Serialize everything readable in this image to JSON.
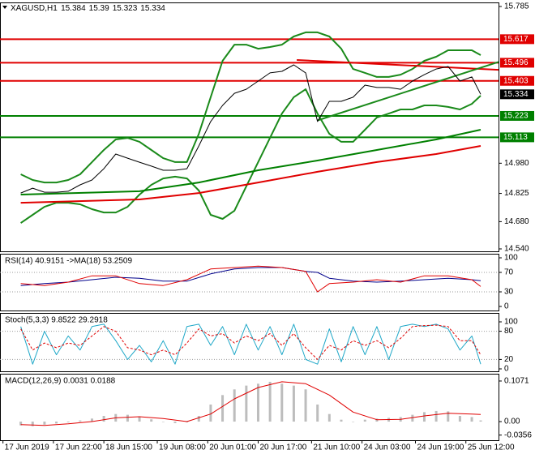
{
  "chart_data": [
    {
      "type": "line",
      "title": "XAGUSD,H1",
      "ohlc": [
        15.384,
        15.39,
        15.323,
        15.334
      ],
      "last_index": 3,
      "xlim": [
        -7,
        161
      ],
      "ylim": [
        14.54,
        15.785
      ],
      "yticks": [
        15.785,
        {
          "value": 14.98,
          "label": "14.980"
        },
        14.825,
        {
          "value": 14.68,
          "label": "14.680"
        },
        {
          "value": 14.54,
          "label": "14.540"
        }
      ],
      "grid": false,
      "x": [
        0,
        4,
        8,
        12,
        16,
        20,
        24,
        28,
        32,
        36,
        40,
        44,
        48,
        52,
        56,
        60,
        64,
        68,
        72,
        76,
        80,
        84,
        88,
        92,
        96,
        100,
        104,
        108,
        112,
        116,
        120,
        124,
        128,
        132,
        136,
        140,
        144,
        148,
        152,
        155
      ],
      "levels": [
        {
          "value": 15.617,
          "color": "#e00000"
        },
        {
          "value": 15.496,
          "color": "#e00000"
        },
        {
          "value": 15.403,
          "color": "#e00000"
        },
        {
          "value": 15.223,
          "color": "#008000"
        },
        {
          "value": 15.113,
          "color": "#008000"
        }
      ],
      "series": [
        {
          "color": "#1a8a1a",
          "width": 2,
          "values": [
            14.923,
            14.894,
            14.881,
            14.881,
            14.894,
            14.923,
            14.986,
            15.048,
            15.102,
            15.11,
            15.09,
            15.048,
            15.006,
            14.986,
            14.986,
            15.131,
            15.319,
            15.506,
            15.589,
            15.589,
            15.568,
            15.577,
            15.589,
            15.631,
            15.652,
            15.652,
            15.631,
            15.568,
            15.464,
            15.444,
            15.423,
            15.423,
            15.435,
            15.464,
            15.506,
            15.527,
            15.56,
            15.56,
            15.56,
            15.535
          ]
        },
        {
          "color": "#1a8a1a",
          "width": 2,
          "values": [
            14.673,
            14.715,
            14.756,
            14.777,
            14.777,
            14.769,
            14.744,
            14.727,
            14.727,
            14.756,
            14.819,
            14.869,
            14.902,
            14.911,
            14.902,
            14.84,
            14.715,
            14.694,
            14.736,
            14.861,
            14.986,
            15.11,
            15.235,
            15.319,
            15.36,
            15.235,
            15.131,
            15.09,
            15.09,
            15.152,
            15.215,
            15.235,
            15.256,
            15.256,
            15.277,
            15.277,
            15.269,
            15.256,
            15.285,
            15.327
          ]
        },
        {
          "color": "#008000",
          "width": 2,
          "x": [
            0,
            40,
            60,
            80,
            100,
            120,
            140,
            155
          ],
          "values": [
            14.819,
            14.836,
            14.881,
            14.944,
            14.994,
            15.048,
            15.102,
            15.152
          ]
        },
        {
          "color": "#e00000",
          "width": 2,
          "x": [
            0,
            40,
            60,
            80,
            100,
            120,
            140,
            155
          ],
          "values": [
            14.777,
            14.794,
            14.827,
            14.881,
            14.936,
            14.986,
            15.027,
            15.069
          ]
        },
        {
          "color": "#e00000",
          "width": 2,
          "x": [
            93,
            161
          ],
          "values": [
            15.51,
            15.46
          ]
        },
        {
          "color": "#1a8a1a",
          "width": 2,
          "x": [
            100,
            161
          ],
          "values": [
            15.2,
            15.5
          ]
        },
        {
          "color": "#000000",
          "width": 1,
          "values": [
            14.827,
            14.852,
            14.831,
            14.831,
            14.836,
            14.869,
            14.894,
            14.952,
            15.027,
            15.006,
            14.985,
            14.965,
            14.944,
            14.944,
            14.952,
            15.069,
            15.194,
            15.277,
            15.339,
            15.36,
            15.402,
            15.444,
            15.452,
            15.485,
            15.444,
            15.194,
            15.298,
            15.298,
            15.319,
            15.381,
            15.369,
            15.369,
            15.36,
            15.402,
            15.435,
            15.464,
            15.477,
            15.402,
            15.423,
            15.334
          ]
        }
      ]
    },
    {
      "type": "line",
      "label": "RSI(14) 40.9151 ->MA(18) 53.2509",
      "xlim": [
        -7,
        161
      ],
      "ylim": [
        0,
        100
      ],
      "yticks": [
        100,
        70,
        30,
        0
      ],
      "grid": true,
      "x": [
        0,
        8,
        16,
        24,
        32,
        40,
        48,
        56,
        64,
        72,
        80,
        88,
        96,
        100,
        104,
        112,
        120,
        128,
        136,
        144,
        152,
        155
      ],
      "series": [
        {
          "color": "#00008b",
          "width": 1,
          "values": [
            43,
            47,
            50,
            55,
            60,
            58,
            52,
            52,
            67,
            77,
            80,
            80,
            72,
            70,
            58,
            52,
            50,
            52,
            55,
            58,
            55,
            53
          ]
        },
        {
          "color": "#e00000",
          "width": 1,
          "values": [
            47,
            43,
            50,
            63,
            63,
            47,
            43,
            55,
            77,
            80,
            83,
            80,
            72,
            30,
            47,
            50,
            55,
            50,
            63,
            63,
            55,
            41
          ]
        }
      ]
    },
    {
      "type": "line",
      "label": "Stoch(5,3,3) 9.8522 29.2918",
      "xlim": [
        -7,
        161
      ],
      "ylim": [
        0,
        100
      ],
      "yticks": [
        100,
        80,
        20,
        0
      ],
      "grid": true,
      "x": [
        0,
        4,
        8,
        12,
        16,
        20,
        24,
        28,
        32,
        36,
        40,
        44,
        48,
        52,
        56,
        60,
        64,
        68,
        72,
        76,
        80,
        84,
        88,
        92,
        96,
        100,
        104,
        108,
        112,
        116,
        120,
        124,
        128,
        132,
        136,
        140,
        144,
        148,
        152,
        155
      ],
      "series": [
        {
          "color": "#20a8c8",
          "width": 1,
          "values": [
            90,
            10,
            80,
            30,
            70,
            40,
            90,
            95,
            60,
            20,
            50,
            15,
            60,
            10,
            90,
            95,
            50,
            90,
            30,
            95,
            40,
            90,
            30,
            95,
            20,
            10,
            85,
            15,
            90,
            30,
            90,
            20,
            90,
            95,
            90,
            95,
            85,
            40,
            70,
            10
          ]
        },
        {
          "color": "#e00000",
          "width": 1,
          "dash": true,
          "values": [
            85,
            40,
            55,
            45,
            55,
            50,
            70,
            90,
            80,
            45,
            40,
            30,
            40,
            30,
            55,
            85,
            70,
            75,
            55,
            70,
            60,
            75,
            50,
            75,
            45,
            20,
            50,
            40,
            60,
            50,
            60,
            45,
            65,
            90,
            92,
            93,
            90,
            60,
            60,
            30
          ]
        }
      ]
    },
    {
      "type": "histogram",
      "label": "MACD(12,26,9) 0.0031 0.0188",
      "xlim": [
        -7,
        161
      ],
      "ylim": [
        -0.047,
        0.122
      ],
      "yticks": [
        0.1071,
        {
          "value": 0,
          "label": "0.00"
        },
        -0.0356
      ],
      "grid": false,
      "xticks": [
        {
          "value": -6,
          "label": "17 Jun 2019"
        },
        {
          "value": 11,
          "label": "17 Jun 22:00"
        },
        {
          "value": 28,
          "label": "18 Jun 15:00"
        },
        {
          "value": 46,
          "label": "19 Jun 08:00"
        },
        {
          "value": 63,
          "label": "20 Jun 01:00"
        },
        {
          "value": 80,
          "label": "20 Jun 17:00"
        },
        {
          "value": 98,
          "label": "21 Jun 10:00"
        },
        {
          "value": 115,
          "label": "24 Jun 03:00"
        },
        {
          "value": 133,
          "label": "24 Jun 19:00"
        },
        {
          "value": 150,
          "label": "25 Jun 12:00"
        }
      ],
      "x": [
        0,
        4,
        8,
        12,
        16,
        20,
        24,
        28,
        32,
        36,
        40,
        44,
        48,
        52,
        56,
        60,
        64,
        68,
        72,
        76,
        80,
        84,
        88,
        92,
        96,
        100,
        104,
        108,
        112,
        116,
        120,
        124,
        128,
        132,
        136,
        140,
        144,
        148,
        152,
        155
      ],
      "bar_color": "#bdbdbd",
      "values": [
        -0.01,
        -0.012,
        -0.008,
        -0.005,
        -0.002,
        0.003,
        0.008,
        0.015,
        0.02,
        0.018,
        0.012,
        0.006,
        0.0,
        -0.004,
        -0.002,
        0.015,
        0.045,
        0.07,
        0.085,
        0.095,
        0.1,
        0.105,
        0.1,
        0.095,
        0.085,
        0.045,
        0.02,
        0.005,
        0.0,
        0.005,
        0.008,
        0.01,
        0.012,
        0.018,
        0.025,
        0.028,
        0.027,
        0.015,
        0.012,
        0.0031
      ],
      "series": [
        {
          "color": "#e00000",
          "width": 1,
          "x": [
            0,
            8,
            16,
            24,
            32,
            40,
            48,
            56,
            64,
            72,
            80,
            88,
            96,
            104,
            112,
            120,
            128,
            136,
            144,
            152,
            155
          ],
          "values": [
            -0.008,
            -0.01,
            -0.006,
            0.0,
            0.01,
            0.013,
            0.008,
            0.0,
            0.02,
            0.06,
            0.09,
            0.105,
            0.1,
            0.07,
            0.025,
            0.005,
            0.006,
            0.015,
            0.022,
            0.02,
            0.0188
          ]
        }
      ]
    }
  ]
}
